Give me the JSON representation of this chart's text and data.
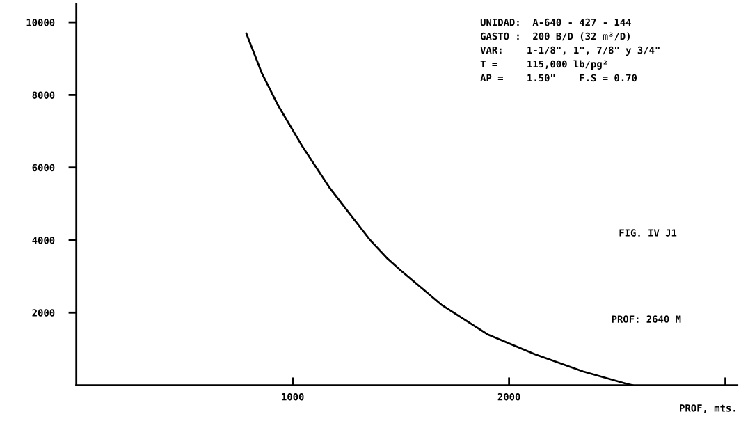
{
  "chart_data": {
    "type": "line",
    "xlabel": "PROF, mts.",
    "x": [
      786,
      856,
      930,
      1042,
      1172,
      1358,
      1438,
      1498,
      1687,
      1904,
      2121,
      2342,
      2543,
      2570
    ],
    "series": [
      {
        "color": "#000000",
        "values": [
          9690,
          8620,
          7740,
          6610,
          5430,
          4000,
          3490,
          3170,
          2220,
          1390,
          850,
          380,
          40,
          0
        ]
      }
    ],
    "xlim": [
      0,
      3055
    ],
    "ylim": [
      0,
      10500
    ],
    "xticks": [
      1000,
      2000,
      {
        "value": 3000,
        "label": null
      }
    ],
    "yticks": [
      2000,
      4000,
      6000,
      8000,
      10000
    ],
    "grid": false,
    "legend": false,
    "marker": "none",
    "line_style": "solid",
    "annotations": [
      "UNIDAD:  A-640 - 427 - 144",
      "GASTO :  200 B/D (32 m³/D)",
      "VAR:    1-1/8\", 1\", 7/8\" y 3/4\"",
      "T =     115,000 lb/pg²",
      "AP =    1.50\"    F.S = 0.70",
      "FIG. IV J1",
      "PROF: 2640 M"
    ]
  }
}
